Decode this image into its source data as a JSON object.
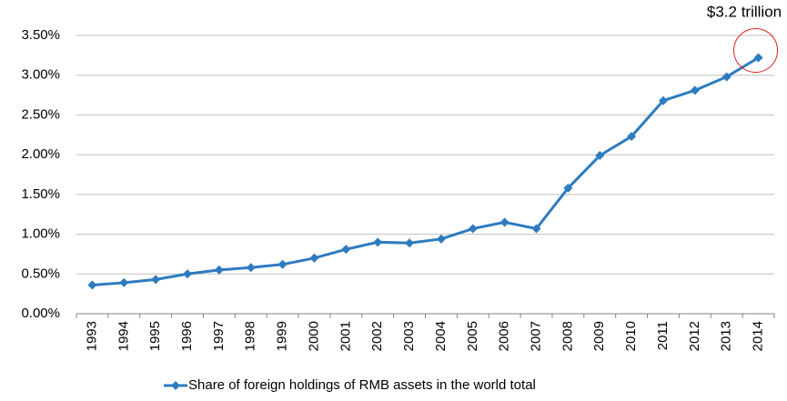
{
  "chart_data": {
    "type": "line",
    "categories": [
      "1993",
      "1994",
      "1995",
      "1996",
      "1997",
      "1998",
      "1999",
      "2000",
      "2001",
      "2002",
      "2003",
      "2004",
      "2005",
      "2006",
      "2007",
      "2008",
      "2009",
      "2010",
      "2011",
      "2012",
      "2013",
      "2014"
    ],
    "series": [
      {
        "name": "Share of foreign holdings of RMB assets in the world total",
        "color": "#2e7bbf",
        "values": [
          0.36,
          0.39,
          0.43,
          0.5,
          0.55,
          0.58,
          0.62,
          0.7,
          0.81,
          0.9,
          0.89,
          0.94,
          1.07,
          1.15,
          1.07,
          1.58,
          1.99,
          2.23,
          2.68,
          2.81,
          2.98,
          3.22
        ]
      }
    ],
    "ylim": [
      0,
      3.5
    ],
    "yticks": [
      {
        "value": 0,
        "label": "0.00%"
      },
      {
        "value": 0.5,
        "label": "0.50%"
      },
      {
        "value": 1,
        "label": "1.00%"
      },
      {
        "value": 1.5,
        "label": "1.50%"
      },
      {
        "value": 2,
        "label": "2.00%"
      },
      {
        "value": 2.5,
        "label": "2.50%"
      },
      {
        "value": 3,
        "label": "3.00%"
      },
      {
        "value": 3.5,
        "label": "3.50%"
      }
    ],
    "grid": true,
    "annotation": "$3.2 trillion",
    "legend": "bottom"
  }
}
